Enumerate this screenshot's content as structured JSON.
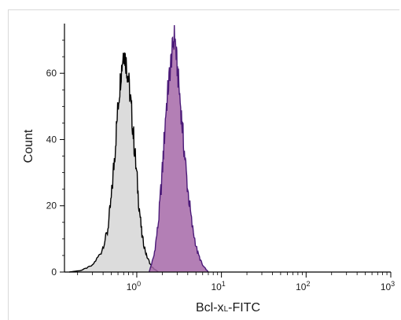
{
  "chart_data": {
    "type": "area",
    "title": "",
    "xlabel": "Bcl-xL-FITC",
    "xlabel_parts": {
      "prefix": "Bcl-x",
      "subscript": "L",
      "suffix": "-FITC"
    },
    "ylabel": "Count",
    "x_scale": "log",
    "xlim": [
      0.14,
      1000
    ],
    "ylim": [
      0,
      75
    ],
    "x_ticks": [
      {
        "value": 1,
        "base": "10",
        "exp": "0"
      },
      {
        "value": 10,
        "base": "10",
        "exp": "1"
      },
      {
        "value": 100,
        "base": "10",
        "exp": "2"
      },
      {
        "value": 1000,
        "base": "10",
        "exp": "3"
      }
    ],
    "y_ticks": [
      0,
      20,
      40,
      60
    ],
    "grid": false,
    "series": [
      {
        "fill": "#dcdcdc",
        "stroke": "#000000",
        "x": [
          0.16,
          0.22,
          0.3,
          0.38,
          0.45,
          0.5,
          0.55,
          0.6,
          0.65,
          0.7,
          0.75,
          0.8,
          0.87,
          0.95,
          1.05,
          1.15,
          1.3,
          1.5,
          1.8
        ],
        "values": [
          0,
          0.5,
          2,
          6,
          12,
          22,
          36,
          50,
          60,
          67,
          63,
          58,
          48,
          36,
          22,
          11,
          5,
          1.5,
          0
        ]
      },
      {
        "fill": "#a668a8",
        "stroke": "#4b1a78",
        "x": [
          1.4,
          1.6,
          1.8,
          2.0,
          2.2,
          2.4,
          2.6,
          2.8,
          3.0,
          3.3,
          3.6,
          4.0,
          4.5,
          5.2,
          6.0,
          7.0
        ],
        "values": [
          0,
          5,
          15,
          30,
          48,
          58,
          66,
          72,
          62,
          50,
          38,
          25,
          14,
          6,
          2,
          0
        ]
      }
    ]
  }
}
